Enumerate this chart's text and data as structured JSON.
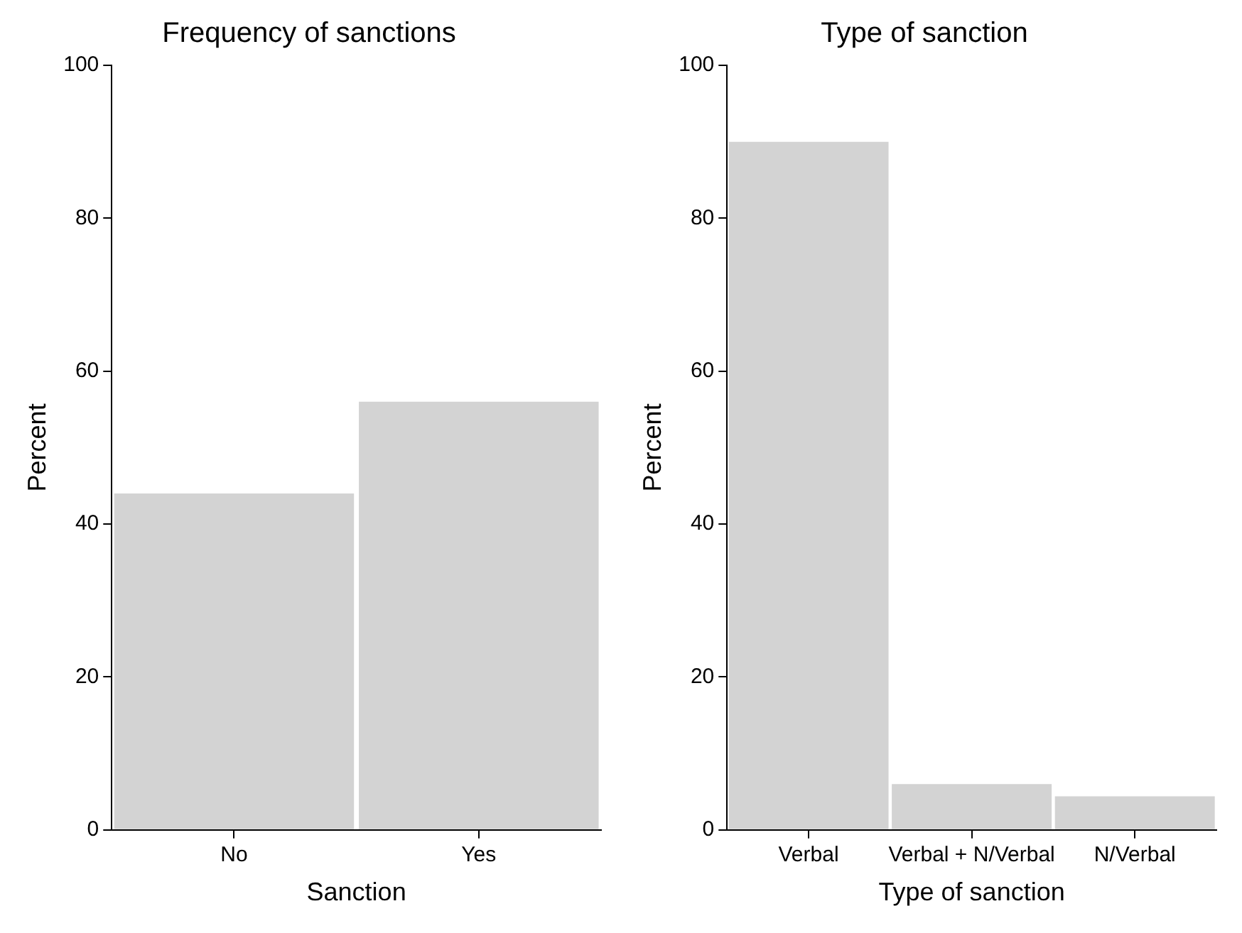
{
  "chart_data": [
    {
      "type": "bar",
      "title": "Frequency of sanctions",
      "xlabel": "Sanction",
      "ylabel": "Percent",
      "categories": [
        "No",
        "Yes"
      ],
      "values": [
        44,
        56
      ],
      "color": "#d3d3d3",
      "ylim": [
        0,
        100
      ],
      "yticks": [
        0,
        20,
        40,
        60,
        80,
        100
      ],
      "grid": false,
      "legend": false
    },
    {
      "type": "bar",
      "title": "Type of sanction",
      "xlabel": "Type of sanction",
      "ylabel": "Percent",
      "categories": [
        "Verbal",
        "Verbal + N/Verbal",
        "N/Verbal"
      ],
      "values": [
        90,
        6,
        4.4
      ],
      "color": "#d3d3d3",
      "ylim": [
        0,
        100
      ],
      "yticks": [
        0,
        20,
        40,
        60,
        80,
        100
      ],
      "grid": false,
      "legend": false
    }
  ]
}
